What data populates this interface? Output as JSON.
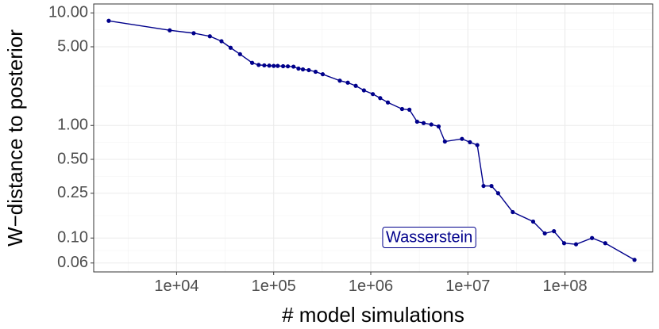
{
  "chart_data": {
    "type": "line",
    "xlabel": "# model simulations",
    "ylabel": "W−distance to posterior",
    "x_scale": "log10",
    "y_scale": "log10",
    "xlim": [
      1400,
      800000000
    ],
    "ylim": [
      0.05,
      12
    ],
    "x_ticks": [
      10000,
      100000,
      1000000,
      10000000,
      100000000
    ],
    "x_tick_labels": [
      "1e+04",
      "1e+05",
      "1e+06",
      "1e+07",
      "1e+08"
    ],
    "y_ticks": [
      10,
      5,
      1,
      0.5,
      0.25,
      0.1,
      0.06
    ],
    "y_tick_labels": [
      "10.00",
      "5.00",
      "1.00",
      "0.50",
      "0.25",
      "0.10",
      "0.06"
    ],
    "grid": true,
    "series": [
      {
        "name": "Wasserstein",
        "color": "#00008B",
        "x": [
          2000,
          8500,
          15000,
          22000,
          29000,
          36000,
          45000,
          60000,
          70000,
          80000,
          90000,
          100000,
          110000,
          125000,
          140000,
          160000,
          180000,
          200000,
          230000,
          270000,
          320000,
          480000,
          580000,
          700000,
          850000,
          1050000,
          1250000,
          1500000,
          2100000,
          2500000,
          3000000,
          3500000,
          4200000,
          5000000,
          5800000,
          8700000,
          10500000,
          12500000,
          14500000,
          17500000,
          20500000,
          29000000,
          47000000,
          62000000,
          77000000,
          98000000,
          130000000,
          190000000,
          260000000,
          520000000
        ],
        "y": [
          8.5,
          7.0,
          6.6,
          6.2,
          5.6,
          4.9,
          4.3,
          3.6,
          3.45,
          3.42,
          3.4,
          3.38,
          3.38,
          3.36,
          3.35,
          3.33,
          3.2,
          3.15,
          3.1,
          3.0,
          2.85,
          2.5,
          2.4,
          2.25,
          2.05,
          1.9,
          1.75,
          1.6,
          1.4,
          1.38,
          1.08,
          1.05,
          1.02,
          0.98,
          0.72,
          0.76,
          0.71,
          0.67,
          0.29,
          0.29,
          0.25,
          0.17,
          0.14,
          0.11,
          0.115,
          0.09,
          0.088,
          0.1,
          0.09,
          0.064
        ]
      }
    ],
    "annotation": {
      "text": "Wasserstein",
      "x": 4000000,
      "y": 0.1,
      "color": "#00008B"
    },
    "legend": "none"
  }
}
